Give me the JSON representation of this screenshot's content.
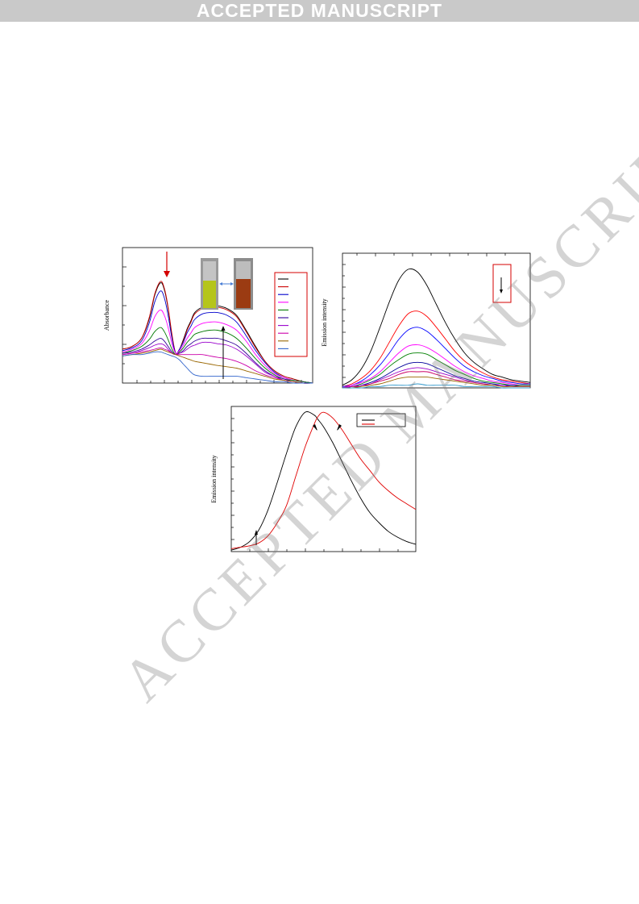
{
  "banner": {
    "text": "ACCEPTED MANUSCRIPT"
  },
  "watermark": {
    "text": "ACCEPTED MANUSCRIPT"
  },
  "chart_data": [
    {
      "type": "line",
      "title": "",
      "xlabel": "",
      "ylabel": "Absorbance",
      "xlim": [
        0,
        100
      ],
      "ylim": [
        0,
        1
      ],
      "x": [
        0,
        5,
        10,
        14,
        17,
        20,
        22,
        24,
        26,
        28,
        30,
        32,
        34,
        36,
        38,
        42,
        46,
        50,
        55,
        60,
        65,
        70,
        75,
        80,
        85,
        90,
        95,
        100
      ],
      "series": [
        {
          "color": "#000000",
          "values": [
            0.25,
            0.27,
            0.33,
            0.47,
            0.65,
            0.74,
            0.69,
            0.55,
            0.35,
            0.22,
            0.25,
            0.32,
            0.4,
            0.46,
            0.52,
            0.56,
            0.57,
            0.57,
            0.55,
            0.5,
            0.39,
            0.27,
            0.16,
            0.09,
            0.05,
            0.03,
            0.01,
            0.0
          ]
        },
        {
          "color": "#cc0000",
          "values": [
            0.25,
            0.27,
            0.33,
            0.48,
            0.66,
            0.75,
            0.7,
            0.56,
            0.36,
            0.22,
            0.25,
            0.31,
            0.39,
            0.45,
            0.51,
            0.55,
            0.56,
            0.56,
            0.54,
            0.49,
            0.38,
            0.26,
            0.16,
            0.09,
            0.05,
            0.03,
            0.01,
            0.0
          ]
        },
        {
          "color": "#0000cc",
          "values": [
            0.24,
            0.26,
            0.31,
            0.44,
            0.6,
            0.68,
            0.63,
            0.5,
            0.33,
            0.22,
            0.25,
            0.3,
            0.37,
            0.42,
            0.47,
            0.51,
            0.52,
            0.52,
            0.5,
            0.45,
            0.35,
            0.24,
            0.15,
            0.08,
            0.04,
            0.02,
            0.01,
            0.0
          ]
        },
        {
          "color": "#ff00ff",
          "values": [
            0.23,
            0.25,
            0.29,
            0.38,
            0.49,
            0.54,
            0.5,
            0.41,
            0.29,
            0.22,
            0.24,
            0.28,
            0.33,
            0.37,
            0.41,
            0.44,
            0.45,
            0.45,
            0.43,
            0.39,
            0.31,
            0.21,
            0.13,
            0.07,
            0.04,
            0.02,
            0.01,
            0.0
          ]
        },
        {
          "color": "#007700",
          "values": [
            0.22,
            0.24,
            0.27,
            0.32,
            0.38,
            0.41,
            0.38,
            0.32,
            0.25,
            0.21,
            0.23,
            0.26,
            0.3,
            0.33,
            0.36,
            0.38,
            0.39,
            0.39,
            0.37,
            0.33,
            0.26,
            0.18,
            0.11,
            0.06,
            0.03,
            0.02,
            0.01,
            0.0
          ]
        },
        {
          "color": "#330099",
          "values": [
            0.22,
            0.23,
            0.25,
            0.28,
            0.31,
            0.33,
            0.31,
            0.27,
            0.23,
            0.21,
            0.22,
            0.24,
            0.27,
            0.29,
            0.31,
            0.33,
            0.33,
            0.33,
            0.31,
            0.28,
            0.22,
            0.15,
            0.09,
            0.05,
            0.03,
            0.01,
            0.0,
            0.0
          ]
        },
        {
          "color": "#9900cc",
          "values": [
            0.21,
            0.22,
            0.24,
            0.26,
            0.28,
            0.29,
            0.28,
            0.25,
            0.22,
            0.21,
            0.22,
            0.23,
            0.25,
            0.27,
            0.28,
            0.3,
            0.3,
            0.29,
            0.28,
            0.25,
            0.2,
            0.14,
            0.08,
            0.05,
            0.02,
            0.01,
            0.0,
            0.0
          ]
        },
        {
          "color": "#cc00aa",
          "values": [
            0.21,
            0.22,
            0.23,
            0.24,
            0.25,
            0.26,
            0.25,
            0.24,
            0.22,
            0.21,
            0.21,
            0.21,
            0.21,
            0.21,
            0.21,
            0.21,
            0.2,
            0.19,
            0.18,
            0.16,
            0.13,
            0.09,
            0.06,
            0.04,
            0.02,
            0.01,
            0.0,
            0.0
          ]
        },
        {
          "color": "#996600",
          "values": [
            0.2,
            0.21,
            0.22,
            0.23,
            0.24,
            0.25,
            0.24,
            0.23,
            0.22,
            0.21,
            0.2,
            0.19,
            0.18,
            0.17,
            0.16,
            0.15,
            0.14,
            0.13,
            0.12,
            0.11,
            0.09,
            0.07,
            0.05,
            0.03,
            0.02,
            0.01,
            0.0,
            0.0
          ]
        },
        {
          "color": "#3366cc",
          "values": [
            0.2,
            0.21,
            0.21,
            0.22,
            0.23,
            0.23,
            0.22,
            0.21,
            0.2,
            0.19,
            0.17,
            0.14,
            0.11,
            0.08,
            0.06,
            0.05,
            0.05,
            0.05,
            0.05,
            0.05,
            0.04,
            0.03,
            0.02,
            0.01,
            0.01,
            0.0,
            0.0,
            0.0
          ]
        }
      ]
    },
    {
      "type": "line",
      "title": "",
      "xlabel": "",
      "ylabel": "Emission intensity",
      "xlim": [
        0,
        100
      ],
      "ylim": [
        0,
        1
      ],
      "x": [
        0,
        5,
        10,
        15,
        20,
        25,
        30,
        35,
        40,
        45,
        50,
        55,
        60,
        65,
        70,
        75,
        80,
        85,
        90,
        95,
        100
      ],
      "series": [
        {
          "color": "#000000",
          "values": [
            0.02,
            0.06,
            0.14,
            0.27,
            0.45,
            0.64,
            0.8,
            0.88,
            0.86,
            0.76,
            0.62,
            0.48,
            0.36,
            0.26,
            0.19,
            0.14,
            0.1,
            0.08,
            0.06,
            0.05,
            0.04
          ]
        },
        {
          "color": "#ff0000",
          "values": [
            0.01,
            0.03,
            0.07,
            0.13,
            0.22,
            0.34,
            0.46,
            0.55,
            0.57,
            0.53,
            0.45,
            0.36,
            0.27,
            0.2,
            0.15,
            0.11,
            0.08,
            0.06,
            0.05,
            0.04,
            0.03
          ]
        },
        {
          "color": "#0000ff",
          "values": [
            0.01,
            0.02,
            0.05,
            0.1,
            0.17,
            0.26,
            0.36,
            0.43,
            0.45,
            0.42,
            0.36,
            0.29,
            0.22,
            0.16,
            0.12,
            0.09,
            0.07,
            0.05,
            0.04,
            0.03,
            0.03
          ]
        },
        {
          "color": "#ff00ff",
          "values": [
            0.0,
            0.02,
            0.04,
            0.07,
            0.12,
            0.19,
            0.26,
            0.31,
            0.32,
            0.3,
            0.26,
            0.21,
            0.16,
            0.12,
            0.09,
            0.07,
            0.05,
            0.04,
            0.03,
            0.02,
            0.02
          ]
        },
        {
          "color": "#008000",
          "values": [
            0.0,
            0.01,
            0.03,
            0.06,
            0.1,
            0.16,
            0.21,
            0.25,
            0.26,
            0.25,
            0.21,
            0.17,
            0.13,
            0.1,
            0.07,
            0.05,
            0.04,
            0.03,
            0.02,
            0.02,
            0.02
          ]
        },
        {
          "color": "#000099",
          "values": [
            0.0,
            0.01,
            0.02,
            0.04,
            0.07,
            0.11,
            0.15,
            0.18,
            0.19,
            0.18,
            0.15,
            0.12,
            0.09,
            0.07,
            0.05,
            0.04,
            0.03,
            0.02,
            0.02,
            0.01,
            0.01
          ]
        },
        {
          "color": "#9900cc",
          "values": [
            0.0,
            0.01,
            0.02,
            0.03,
            0.06,
            0.09,
            0.12,
            0.14,
            0.15,
            0.14,
            0.12,
            0.1,
            0.08,
            0.06,
            0.04,
            0.03,
            0.02,
            0.02,
            0.01,
            0.01,
            0.01
          ]
        },
        {
          "color": "#cc0066",
          "values": [
            0.0,
            0.01,
            0.01,
            0.03,
            0.05,
            0.07,
            0.1,
            0.12,
            0.12,
            0.12,
            0.1,
            0.08,
            0.06,
            0.05,
            0.04,
            0.03,
            0.02,
            0.01,
            0.01,
            0.01,
            0.01
          ]
        },
        {
          "color": "#996600",
          "values": [
            0.0,
            0.0,
            0.01,
            0.02,
            0.03,
            0.05,
            0.07,
            0.08,
            0.08,
            0.08,
            0.07,
            0.06,
            0.05,
            0.04,
            0.03,
            0.02,
            0.02,
            0.01,
            0.01,
            0.01,
            0.01
          ]
        },
        {
          "color": "#3399cc",
          "values": [
            0.0,
            0.0,
            0.0,
            0.01,
            0.01,
            0.02,
            0.02,
            0.02,
            0.03,
            0.02,
            0.02,
            0.02,
            0.02,
            0.01,
            0.01,
            0.01,
            0.01,
            0.0,
            0.0,
            0.0,
            0.0
          ]
        }
      ]
    },
    {
      "type": "line",
      "title": "",
      "xlabel": "",
      "ylabel": "Emission intensity",
      "xlim": [
        0,
        100
      ],
      "ylim": [
        0,
        1
      ],
      "x": [
        0,
        5,
        10,
        15,
        20,
        25,
        30,
        35,
        40,
        45,
        47,
        50,
        55,
        60,
        65,
        70,
        75,
        80,
        85,
        90,
        95,
        100
      ],
      "series": [
        {
          "color": "#000000",
          "values": [
            0.01,
            0.03,
            0.07,
            0.15,
            0.29,
            0.48,
            0.68,
            0.86,
            0.96,
            0.94,
            0.91,
            0.86,
            0.75,
            0.62,
            0.49,
            0.37,
            0.27,
            0.2,
            0.14,
            0.1,
            0.07,
            0.05
          ]
        },
        {
          "color": "#e00000",
          "values": [
            0.02,
            0.03,
            0.04,
            0.06,
            0.11,
            0.2,
            0.32,
            0.52,
            0.72,
            0.88,
            0.93,
            0.96,
            0.92,
            0.84,
            0.74,
            0.64,
            0.56,
            0.48,
            0.42,
            0.37,
            0.33,
            0.29
          ]
        }
      ]
    }
  ]
}
